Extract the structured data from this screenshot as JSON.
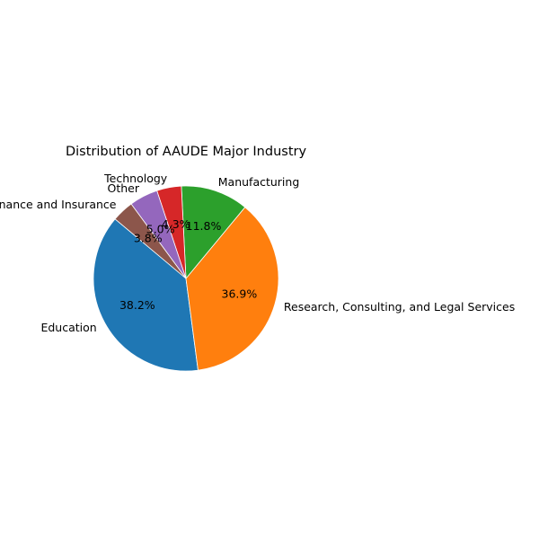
{
  "chart_data": {
    "type": "pie",
    "title": "Distribution of AAUDE Major Industry",
    "start_angle_deg": 140,
    "direction": "counterclockwise",
    "slices": [
      {
        "label": "Education",
        "value": 38.2,
        "pct_label": "38.2%",
        "color": "#1f77b4"
      },
      {
        "label": "Research, Consulting, and Legal Services",
        "value": 36.9,
        "pct_label": "36.9%",
        "color": "#ff7f0e"
      },
      {
        "label": "Manufacturing",
        "value": 11.8,
        "pct_label": "11.8%",
        "color": "#2ca02c"
      },
      {
        "label": "Technology",
        "value": 4.3,
        "pct_label": "4.3%",
        "color": "#d62728"
      },
      {
        "label": "Other",
        "value": 5.0,
        "pct_label": "5.0%",
        "color": "#9467bd"
      },
      {
        "label": "Finance and Insurance",
        "value": 3.8,
        "pct_label": "3.8%",
        "color": "#8c564b"
      }
    ]
  }
}
